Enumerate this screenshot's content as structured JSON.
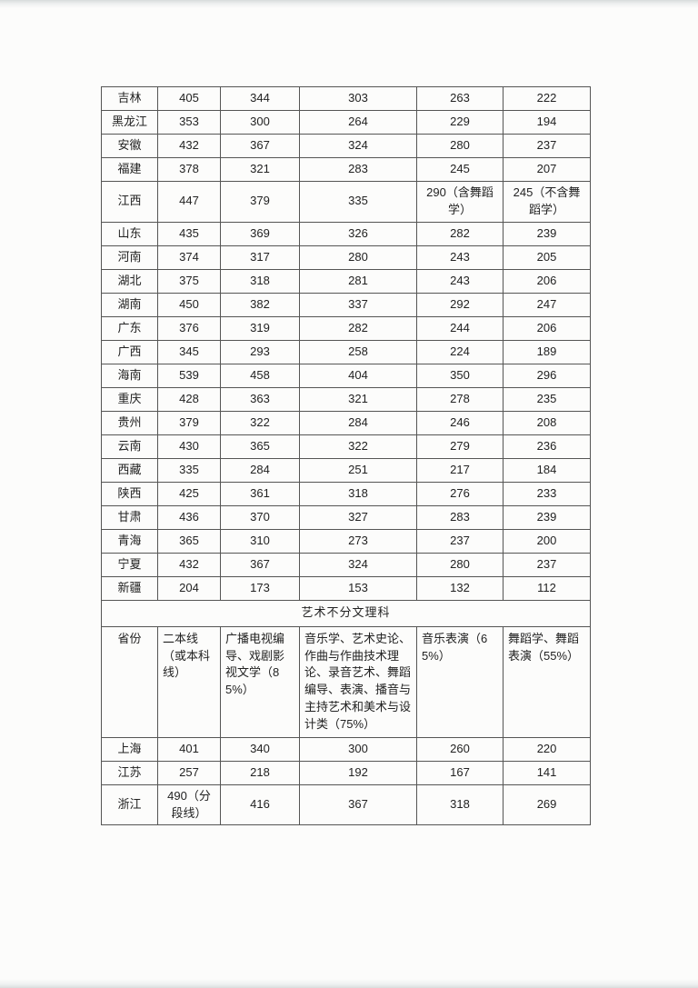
{
  "section_title": "艺术不分文理科",
  "table_continued": {
    "rows": [
      [
        "吉林",
        "405",
        "344",
        "303",
        "263",
        "222"
      ],
      [
        "黑龙江",
        "353",
        "300",
        "264",
        "229",
        "194"
      ],
      [
        "安徽",
        "432",
        "367",
        "324",
        "280",
        "237"
      ],
      [
        "福建",
        "378",
        "321",
        "283",
        "245",
        "207"
      ],
      [
        "江西",
        "447",
        "379",
        "335",
        "290（含舞蹈学）",
        "245（不含舞蹈学）"
      ],
      [
        "山东",
        "435",
        "369",
        "326",
        "282",
        "239"
      ],
      [
        "河南",
        "374",
        "317",
        "280",
        "243",
        "205"
      ],
      [
        "湖北",
        "375",
        "318",
        "281",
        "243",
        "206"
      ],
      [
        "湖南",
        "450",
        "382",
        "337",
        "292",
        "247"
      ],
      [
        "广东",
        "376",
        "319",
        "282",
        "244",
        "206"
      ],
      [
        "广西",
        "345",
        "293",
        "258",
        "224",
        "189"
      ],
      [
        "海南",
        "539",
        "458",
        "404",
        "350",
        "296"
      ],
      [
        "重庆",
        "428",
        "363",
        "321",
        "278",
        "235"
      ],
      [
        "贵州",
        "379",
        "322",
        "284",
        "246",
        "208"
      ],
      [
        "云南",
        "430",
        "365",
        "322",
        "279",
        "236"
      ],
      [
        "西藏",
        "335",
        "284",
        "251",
        "217",
        "184"
      ],
      [
        "陕西",
        "425",
        "361",
        "318",
        "276",
        "233"
      ],
      [
        "甘肃",
        "436",
        "370",
        "327",
        "283",
        "239"
      ],
      [
        "青海",
        "365",
        "310",
        "273",
        "237",
        "200"
      ],
      [
        "宁夏",
        "432",
        "367",
        "324",
        "280",
        "237"
      ],
      [
        "新疆",
        "204",
        "173",
        "153",
        "132",
        "112"
      ]
    ]
  },
  "arts_table": {
    "headers": [
      "省份",
      "二本线（或本科线）",
      "广播电视编导、戏剧影视文学（85%）",
      "音乐学、艺术史论、作曲与作曲技术理论、录音艺术、舞蹈编导、表演、播音与主持艺术和美术与设计类（75%）",
      "音乐表演（65%）",
      "舞蹈学、舞蹈表演（55%）"
    ],
    "rows": [
      [
        "上海",
        "401",
        "340",
        "300",
        "260",
        "220"
      ],
      [
        "江苏",
        "257",
        "218",
        "192",
        "167",
        "141"
      ],
      [
        "浙江",
        "490（分段线）",
        "416",
        "367",
        "318",
        "269"
      ]
    ]
  }
}
